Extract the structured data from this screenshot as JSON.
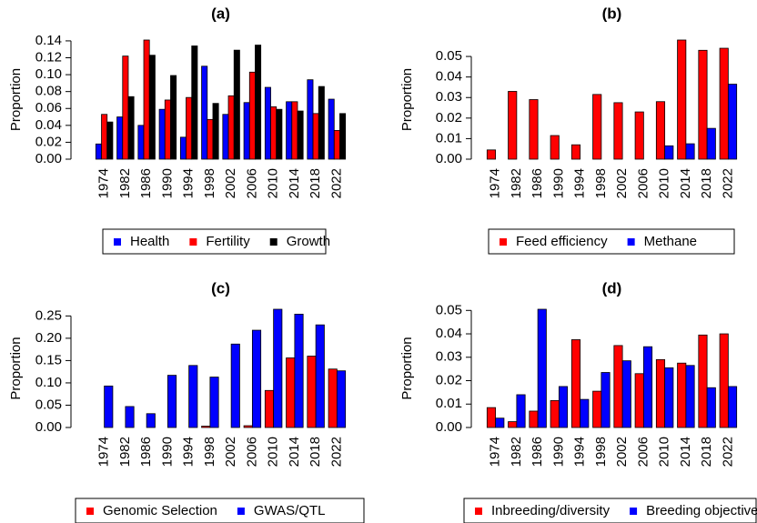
{
  "chart_data": [
    {
      "type": "bar",
      "title": "(a)",
      "y_label": "Proportion",
      "categories": [
        "1974",
        "1982",
        "1986",
        "1990",
        "1994",
        "1998",
        "2002",
        "2006",
        "2010",
        "2014",
        "2018",
        "2022"
      ],
      "series": [
        {
          "name": "Health",
          "color": "#0000ff",
          "values": [
            0.018,
            0.05,
            0.04,
            0.059,
            0.026,
            0.11,
            0.053,
            0.067,
            0.085,
            0.068,
            0.094,
            0.071
          ]
        },
        {
          "name": "Fertility",
          "color": "#ff0000",
          "values": [
            0.053,
            0.122,
            0.141,
            0.07,
            0.073,
            0.047,
            0.075,
            0.103,
            0.062,
            0.068,
            0.054,
            0.034
          ]
        },
        {
          "name": "Growth",
          "color": "#000000",
          "values": [
            0.044,
            0.074,
            0.123,
            0.099,
            0.134,
            0.066,
            0.129,
            0.135,
            0.059,
            0.057,
            0.086,
            0.054
          ]
        }
      ],
      "ylim": [
        0,
        0.141
      ],
      "yticks": [
        {
          "value": 0,
          "label": "0.00"
        },
        {
          "value": 0.02,
          "label": "0.02"
        },
        {
          "value": 0.04,
          "label": "0.04"
        },
        {
          "value": 0.06,
          "label": "0.06"
        },
        {
          "value": 0.08,
          "label": "0.08"
        },
        {
          "value": 0.1,
          "label": "0.10"
        },
        {
          "value": 0.12,
          "label": "0.12"
        },
        {
          "value": 0.14,
          "label": "0.14"
        }
      ]
    },
    {
      "type": "bar",
      "title": "(b)",
      "y_label": "Proportion",
      "categories": [
        "1974",
        "1982",
        "1986",
        "1990",
        "1994",
        "1998",
        "2002",
        "2006",
        "2010",
        "2014",
        "2018",
        "2022"
      ],
      "series": [
        {
          "name": "Feed efficiency",
          "color": "#ff0000",
          "values": [
            0.0045,
            0.033,
            0.029,
            0.0115,
            0.007,
            0.0315,
            0.0275,
            0.023,
            0.028,
            0.058,
            0.053,
            0.054
          ]
        },
        {
          "name": "Methane",
          "color": "#0000ff",
          "values": [
            0,
            0,
            0,
            0,
            0,
            0,
            0,
            0,
            0.0065,
            0.0075,
            0.015,
            0.0365
          ]
        }
      ],
      "ylim": [
        0,
        0.058
      ],
      "yticks": [
        {
          "value": 0,
          "label": "0.00"
        },
        {
          "value": 0.01,
          "label": "0.01"
        },
        {
          "value": 0.02,
          "label": "0.02"
        },
        {
          "value": 0.03,
          "label": "0.03"
        },
        {
          "value": 0.04,
          "label": "0.04"
        },
        {
          "value": 0.05,
          "label": "0.05"
        }
      ]
    },
    {
      "type": "bar",
      "title": "(c)",
      "y_label": "Proportion",
      "categories": [
        "1974",
        "1982",
        "1986",
        "1990",
        "1994",
        "1998",
        "2002",
        "2006",
        "2010",
        "2014",
        "2018",
        "2022"
      ],
      "series": [
        {
          "name": "Genomic Selection",
          "color": "#ff0000",
          "values": [
            0,
            0,
            0,
            0,
            0,
            0.003,
            0,
            0.004,
            0.083,
            0.156,
            0.16,
            0.131
          ]
        },
        {
          "name": "GWAS/QTL",
          "color": "#0000ff",
          "values": [
            0.093,
            0.047,
            0.031,
            0.117,
            0.139,
            0.113,
            0.187,
            0.218,
            0.265,
            0.254,
            0.23,
            0.127
          ]
        }
      ],
      "ylim": [
        0,
        0.265
      ],
      "yticks": [
        {
          "value": 0,
          "label": "0.00"
        },
        {
          "value": 0.05,
          "label": "0.05"
        },
        {
          "value": 0.1,
          "label": "0.10"
        },
        {
          "value": 0.15,
          "label": "0.15"
        },
        {
          "value": 0.2,
          "label": "0.20"
        },
        {
          "value": 0.25,
          "label": "0.25"
        }
      ]
    },
    {
      "type": "bar",
      "title": "(d)",
      "y_label": "Proportion",
      "categories": [
        "1974",
        "1982",
        "1986",
        "1990",
        "1994",
        "1998",
        "2002",
        "2006",
        "2010",
        "2014",
        "2018",
        "2022"
      ],
      "series": [
        {
          "name": "Inbreeding/diversity",
          "color": "#ff0000",
          "values": [
            0.0085,
            0.0025,
            0.007,
            0.0115,
            0.0375,
            0.0155,
            0.035,
            0.023,
            0.029,
            0.0275,
            0.0395,
            0.04
          ]
        },
        {
          "name": "Breeding objectives",
          "color": "#0000ff",
          "values": [
            0.004,
            0.014,
            0.0505,
            0.0175,
            0.012,
            0.0235,
            0.0285,
            0.0345,
            0.0255,
            0.0265,
            0.017,
            0.0175
          ]
        }
      ],
      "ylim": [
        0,
        0.0505
      ],
      "yticks": [
        {
          "value": 0,
          "label": "0.00"
        },
        {
          "value": 0.01,
          "label": "0.01"
        },
        {
          "value": 0.02,
          "label": "0.02"
        },
        {
          "value": 0.03,
          "label": "0.03"
        },
        {
          "value": 0.04,
          "label": "0.04"
        },
        {
          "value": 0.05,
          "label": "0.05"
        }
      ]
    }
  ]
}
